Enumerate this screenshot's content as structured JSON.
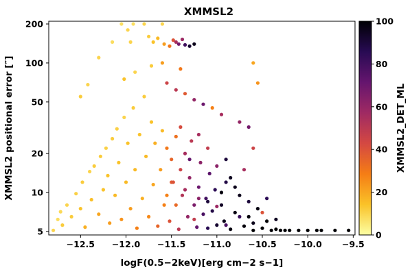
{
  "chart_data": {
    "type": "scatter",
    "title": "XMMSL2",
    "xlabel": "logF(0.5−2keV)[erg cm−2 s−1]",
    "ylabel": "XMMSL2 positional error [″]",
    "xlim": [
      -12.85,
      -9.48
    ],
    "ylim": [
      4.7,
      210
    ],
    "yscale": "log",
    "x_ticks": [
      -12.5,
      -12.0,
      -11.5,
      -11.0,
      -10.5,
      -10.0,
      -9.5
    ],
    "x_tick_labels": [
      "−12.5",
      "−12.0",
      "−11.5",
      "−11.0",
      "−10.5",
      "−10.0",
      "−9.5"
    ],
    "y_ticks": [
      5,
      10,
      20,
      50,
      100,
      200
    ],
    "y_tick_labels": [
      "5",
      "10",
      "20",
      "50",
      "100",
      "200"
    ],
    "colorbar": {
      "label": "XMMSL2_DET_ML",
      "range": [
        0,
        100
      ],
      "ticks": [
        0,
        20,
        40,
        60,
        80,
        100
      ],
      "tick_labels": [
        "0",
        "20",
        "40",
        "60",
        "80",
        "100"
      ],
      "colormap": "inferno_r",
      "stops": [
        "#fcffa4",
        "#fac228",
        "#f57d15",
        "#d44842",
        "#9f2a63",
        "#65156e",
        "#280b53",
        "#000004"
      ]
    },
    "series": [
      {
        "points": [
          [
            -12.8,
            5.1,
            10
          ],
          [
            -12.75,
            6.2,
            8
          ],
          [
            -12.7,
            5.6,
            12
          ],
          [
            -12.72,
            7.1,
            9
          ],
          [
            -12.65,
            8.0,
            10
          ],
          [
            -12.6,
            6.5,
            12
          ],
          [
            -12.55,
            9.8,
            11
          ],
          [
            -12.5,
            7.5,
            14
          ],
          [
            -12.48,
            12.0,
            12
          ],
          [
            -12.45,
            5.4,
            18
          ],
          [
            -12.4,
            14.5,
            10
          ],
          [
            -12.38,
            8.8,
            15
          ],
          [
            -12.35,
            16.0,
            12
          ],
          [
            -12.3,
            6.8,
            20
          ],
          [
            -12.28,
            19.0,
            12
          ],
          [
            -12.25,
            10.5,
            14
          ],
          [
            -12.22,
            22.0,
            11
          ],
          [
            -12.2,
            13.5,
            14
          ],
          [
            -12.18,
            5.8,
            22
          ],
          [
            -12.15,
            26.0,
            12
          ],
          [
            -12.12,
            9.5,
            16
          ],
          [
            -12.1,
            31.0,
            11
          ],
          [
            -12.08,
            17.0,
            14
          ],
          [
            -12.05,
            6.2,
            24
          ],
          [
            -12.02,
            38.0,
            10
          ],
          [
            -12.0,
            12.0,
            16
          ],
          [
            -11.98,
            24.0,
            14
          ],
          [
            -11.95,
            7.5,
            22
          ],
          [
            -11.92,
            45.0,
            12
          ],
          [
            -11.9,
            15.0,
            16
          ],
          [
            -11.88,
            5.3,
            28
          ],
          [
            -11.85,
            28.0,
            14
          ],
          [
            -11.82,
            9.0,
            18
          ],
          [
            -11.8,
            55.0,
            12
          ],
          [
            -11.78,
            19.0,
            16
          ],
          [
            -11.75,
            6.5,
            26
          ],
          [
            -11.72,
            35.0,
            14
          ],
          [
            -11.7,
            11.5,
            20
          ],
          [
            -11.68,
            24.0,
            18
          ],
          [
            -11.65,
            5.5,
            35
          ],
          [
            -11.62,
            15.0,
            22
          ],
          [
            -11.6,
            30.0,
            16
          ],
          [
            -11.58,
            8.0,
            28
          ],
          [
            -11.55,
            22.0,
            30
          ],
          [
            -11.52,
            6.0,
            40
          ],
          [
            -11.5,
            18.0,
            35
          ],
          [
            -11.48,
            12.0,
            40
          ],
          [
            -11.45,
            27.0,
            32
          ],
          [
            -11.42,
            5.2,
            50
          ],
          [
            -11.4,
            15.0,
            45
          ],
          [
            -11.38,
            9.5,
            52
          ],
          [
            -11.35,
            20.0,
            55
          ],
          [
            -11.32,
            6.5,
            60
          ],
          [
            -11.3,
            13.0,
            60
          ],
          [
            -11.28,
            25.0,
            50
          ],
          [
            -11.25,
            8.0,
            66
          ],
          [
            -11.22,
            5.4,
            72
          ],
          [
            -11.2,
            11.0,
            70
          ],
          [
            -11.18,
            17.0,
            62
          ],
          [
            -11.15,
            6.8,
            78
          ],
          [
            -11.12,
            9.0,
            80
          ],
          [
            -11.1,
            5.3,
            86
          ],
          [
            -11.08,
            14.0,
            74
          ],
          [
            -11.05,
            7.2,
            88
          ],
          [
            -11.02,
            10.5,
            85
          ],
          [
            -11.0,
            5.6,
            92
          ],
          [
            -10.95,
            8.0,
            94
          ],
          [
            -10.92,
            6.0,
            96
          ],
          [
            -10.9,
            12.0,
            88
          ],
          [
            -10.85,
            5.2,
            98
          ],
          [
            -10.8,
            7.0,
            98
          ],
          [
            -10.75,
            9.5,
            96
          ],
          [
            -10.7,
            5.5,
            99
          ],
          [
            -10.65,
            6.5,
            99
          ],
          [
            -10.6,
            5.1,
            100
          ],
          [
            -10.55,
            7.5,
            98
          ],
          [
            -10.5,
            5.3,
            100
          ],
          [
            -10.45,
            6.0,
            100
          ],
          [
            -10.4,
            5.1,
            100
          ],
          [
            -10.35,
            5.2,
            100
          ],
          [
            -10.3,
            5.1,
            100
          ],
          [
            -10.25,
            5.1,
            100
          ],
          [
            -10.2,
            5.1,
            100
          ],
          [
            -10.1,
            5.1,
            100
          ],
          [
            -10.0,
            5.1,
            100
          ],
          [
            -9.9,
            5.1,
            100
          ],
          [
            -9.85,
            5.1,
            100
          ],
          [
            -9.7,
            5.1,
            100
          ],
          [
            -9.55,
            5.1,
            100
          ],
          [
            -12.5,
            55.0,
            12
          ],
          [
            -12.42,
            68.0,
            10
          ],
          [
            -12.3,
            110.0,
            10
          ],
          [
            -12.15,
            145.0,
            8
          ],
          [
            -12.05,
            200.0,
            8
          ],
          [
            -11.98,
            180.0,
            10
          ],
          [
            -11.95,
            145.0,
            10
          ],
          [
            -11.92,
            200.0,
            8
          ],
          [
            -11.8,
            200.0,
            10
          ],
          [
            -11.75,
            160.0,
            12
          ],
          [
            -11.7,
            145.0,
            14
          ],
          [
            -11.65,
            155.0,
            16
          ],
          [
            -11.6,
            200.0,
            10
          ],
          [
            -11.58,
            140.0,
            22
          ],
          [
            -11.52,
            135.0,
            30
          ],
          [
            -11.48,
            150.0,
            40
          ],
          [
            -11.45,
            145.0,
            55
          ],
          [
            -11.42,
            140.0,
            68
          ],
          [
            -11.38,
            152.0,
            58
          ],
          [
            -11.35,
            138.0,
            80
          ],
          [
            -11.3,
            135.0,
            92
          ],
          [
            -11.25,
            140.0,
            96
          ],
          [
            -11.6,
            100.0,
            22
          ],
          [
            -11.4,
            90.0,
            30
          ],
          [
            -11.72,
            95.0,
            12
          ],
          [
            -11.9,
            85.0,
            10
          ],
          [
            -12.02,
            75.0,
            14
          ],
          [
            -11.55,
            70.0,
            45
          ],
          [
            -11.45,
            62.0,
            50
          ],
          [
            -11.35,
            58.0,
            38
          ],
          [
            -11.25,
            52.0,
            60
          ],
          [
            -11.15,
            48.0,
            70
          ],
          [
            -11.05,
            45.0,
            28
          ],
          [
            -10.95,
            40.0,
            55
          ],
          [
            -10.75,
            35.0,
            60
          ],
          [
            -10.6,
            100.0,
            20
          ],
          [
            -10.55,
            70.0,
            24
          ],
          [
            -10.6,
            22.0,
            45
          ],
          [
            -10.65,
            32.0,
            68
          ],
          [
            -10.7,
            15.0,
            55
          ],
          [
            -10.9,
            18.0,
            90
          ],
          [
            -10.85,
            13.0,
            95
          ],
          [
            -11.0,
            16.0,
            62
          ],
          [
            -11.1,
            22.0,
            48
          ],
          [
            -11.2,
            28.0,
            55
          ],
          [
            -11.3,
            18.0,
            72
          ],
          [
            -11.4,
            32.0,
            42
          ],
          [
            -11.5,
            12.0,
            38
          ],
          [
            -11.1,
            8.5,
            90
          ],
          [
            -10.95,
            10.0,
            98
          ],
          [
            -10.8,
            11.0,
            96
          ],
          [
            -10.75,
            6.5,
            82
          ],
          [
            -10.65,
            8.5,
            90
          ],
          [
            -10.6,
            5.8,
            96
          ],
          [
            -10.5,
            7.0,
            40
          ],
          [
            -10.45,
            9.0,
            85
          ],
          [
            -10.35,
            6.2,
            95
          ],
          [
            -10.9,
            5.6,
            78
          ],
          [
            -11.0,
            7.8,
            58
          ],
          [
            -11.2,
            9.0,
            62
          ],
          [
            -11.35,
            10.5,
            55
          ],
          [
            -11.25,
            6.2,
            48
          ],
          [
            -11.45,
            8.0,
            34
          ],
          [
            -11.55,
            9.5,
            28
          ]
        ]
      }
    ]
  }
}
